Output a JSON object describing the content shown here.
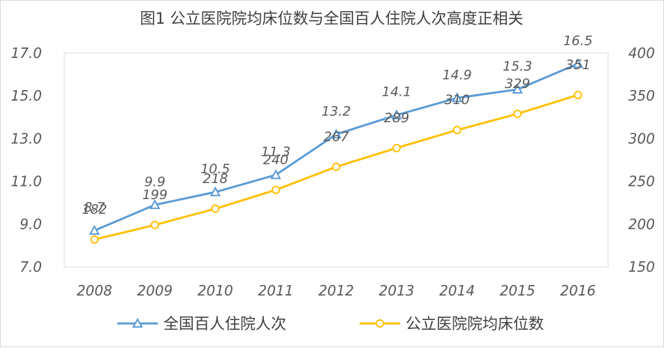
{
  "chart_data": {
    "type": "line",
    "title": "图1  公立医院院均床位数与全国百人住院人次高度正相关",
    "categories": [
      "2008",
      "2009",
      "2010",
      "2011",
      "2012",
      "2013",
      "2014",
      "2015",
      "2016"
    ],
    "left_axis": {
      "min": 7.0,
      "max": 17.0,
      "ticks": [
        "7.0",
        "9.0",
        "11.0",
        "13.0",
        "15.0",
        "17.0"
      ]
    },
    "right_axis": {
      "min": 150,
      "max": 400,
      "ticks": [
        "150",
        "200",
        "250",
        "300",
        "350",
        "400"
      ]
    },
    "series": [
      {
        "name": "全国百人住院人次",
        "axis": "left",
        "marker": "triangle",
        "color": "#5b9bd5",
        "values": [
          8.7,
          9.9,
          10.5,
          11.3,
          13.2,
          14.1,
          14.9,
          15.3,
          16.5
        ],
        "labels": [
          "8.7",
          "9.9",
          "10.5",
          "11.3",
          "13.2",
          "14.1",
          "14.9",
          "15.3",
          "16.5"
        ]
      },
      {
        "name": "公立医院院均床位数",
        "axis": "right",
        "marker": "circle",
        "color": "#ffc000",
        "values": [
          182,
          199,
          218,
          240,
          267,
          289,
          310,
          329,
          351
        ],
        "labels": [
          "182",
          "199",
          "218",
          "240",
          "267",
          "289",
          "310",
          "329",
          "351"
        ]
      }
    ],
    "grid": false,
    "legend_position": "bottom"
  }
}
